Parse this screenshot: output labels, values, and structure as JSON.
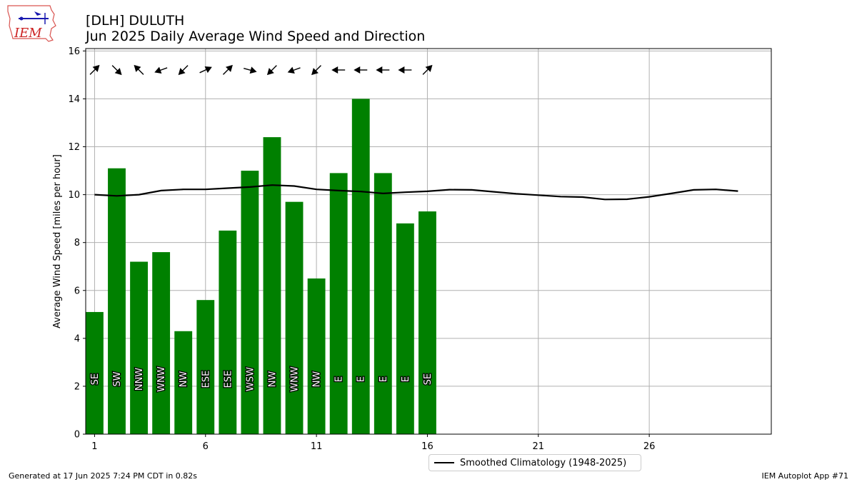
{
  "header": {
    "title_line1": "[DLH] DULUTH",
    "title_line2": "Jun 2025 Daily Average Wind Speed and Direction"
  },
  "logo": {
    "text": "IEM"
  },
  "footer": {
    "left": "Generated at 17 Jun 2025 7:24 PM CDT in 0.82s",
    "right": "IEM Autoplot App #71"
  },
  "chart_data": {
    "type": "bar",
    "ylabel": "Average Wind Speed [miles per hour]",
    "xlabel": "",
    "ylim": [
      0,
      16.1
    ],
    "xlim": [
      0.6,
      31.5
    ],
    "xticks": [
      1,
      6,
      11,
      16,
      21,
      26
    ],
    "yticks": [
      0,
      2,
      4,
      6,
      8,
      10,
      12,
      14,
      16
    ],
    "grid": true,
    "bar_color": "#008000",
    "days": [
      1,
      2,
      3,
      4,
      5,
      6,
      7,
      8,
      9,
      10,
      11,
      12,
      13,
      14,
      15,
      16
    ],
    "values": [
      5.1,
      11.1,
      7.2,
      7.6,
      4.3,
      5.6,
      8.5,
      11.0,
      12.4,
      9.7,
      6.5,
      10.9,
      14.0,
      10.9,
      8.8,
      9.3
    ],
    "directions": [
      "SE",
      "SW",
      "NNW",
      "WNW",
      "NW",
      "ESE",
      "ESE",
      "WSW",
      "NW",
      "WNW",
      "NW",
      "E",
      "E",
      "E",
      "E",
      "SE"
    ],
    "arrow_angles_deg": [
      -45,
      45,
      225,
      160,
      135,
      -25,
      -45,
      15,
      135,
      160,
      135,
      180,
      180,
      180,
      180,
      -45
    ],
    "climatology": {
      "name": "Smoothed Climatology (1948-2025)",
      "color": "#000000",
      "x": [
        1,
        2,
        3,
        4,
        5,
        6,
        7,
        8,
        9,
        10,
        11,
        12,
        13,
        14,
        15,
        16,
        17,
        18,
        19,
        20,
        21,
        22,
        23,
        24,
        25,
        26,
        27,
        28,
        29,
        30
      ],
      "values": [
        10.0,
        9.95,
        10.0,
        10.17,
        10.22,
        10.22,
        10.27,
        10.32,
        10.4,
        10.36,
        10.22,
        10.17,
        10.13,
        10.05,
        10.1,
        10.14,
        10.21,
        10.2,
        10.12,
        10.04,
        9.98,
        9.92,
        9.9,
        9.8,
        9.81,
        9.91,
        10.05,
        10.2,
        10.22,
        10.15
      ]
    }
  }
}
